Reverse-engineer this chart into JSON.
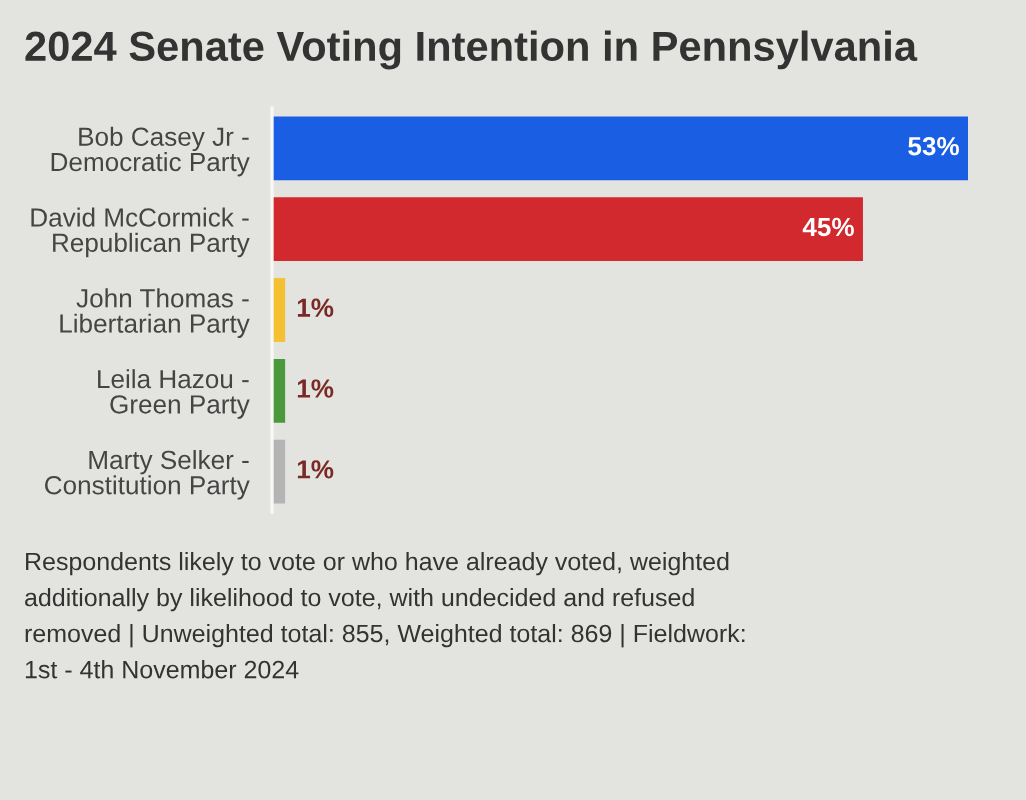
{
  "chart_data": {
    "type": "bar",
    "orientation": "horizontal",
    "title": "2024 Senate Voting Intention in Pennsylvania",
    "categories": [
      "Bob Casey Jr - Democratic Party",
      "David McCormick - Republican Party",
      "John Thomas - Libertarian Party",
      "Leila Hazou - Green Party",
      "Marty Selker - Constitution Party"
    ],
    "values": [
      53,
      45,
      1,
      1,
      1
    ],
    "colors": [
      "#1a5ee3",
      "#d2292f",
      "#f5c133",
      "#4a9a3c",
      "#b4b4b4"
    ],
    "value_labels": [
      "53%",
      "45%",
      "1%",
      "1%",
      "1%"
    ],
    "annotations": [
      "Respondents likely to vote or who have already voted, weighted additionally by likelihood to vote, with undecided and refused removed | Unweighted total: 855, Weighted total: 869 | Fieldwork: 1st - 4th November 2024"
    ]
  }
}
